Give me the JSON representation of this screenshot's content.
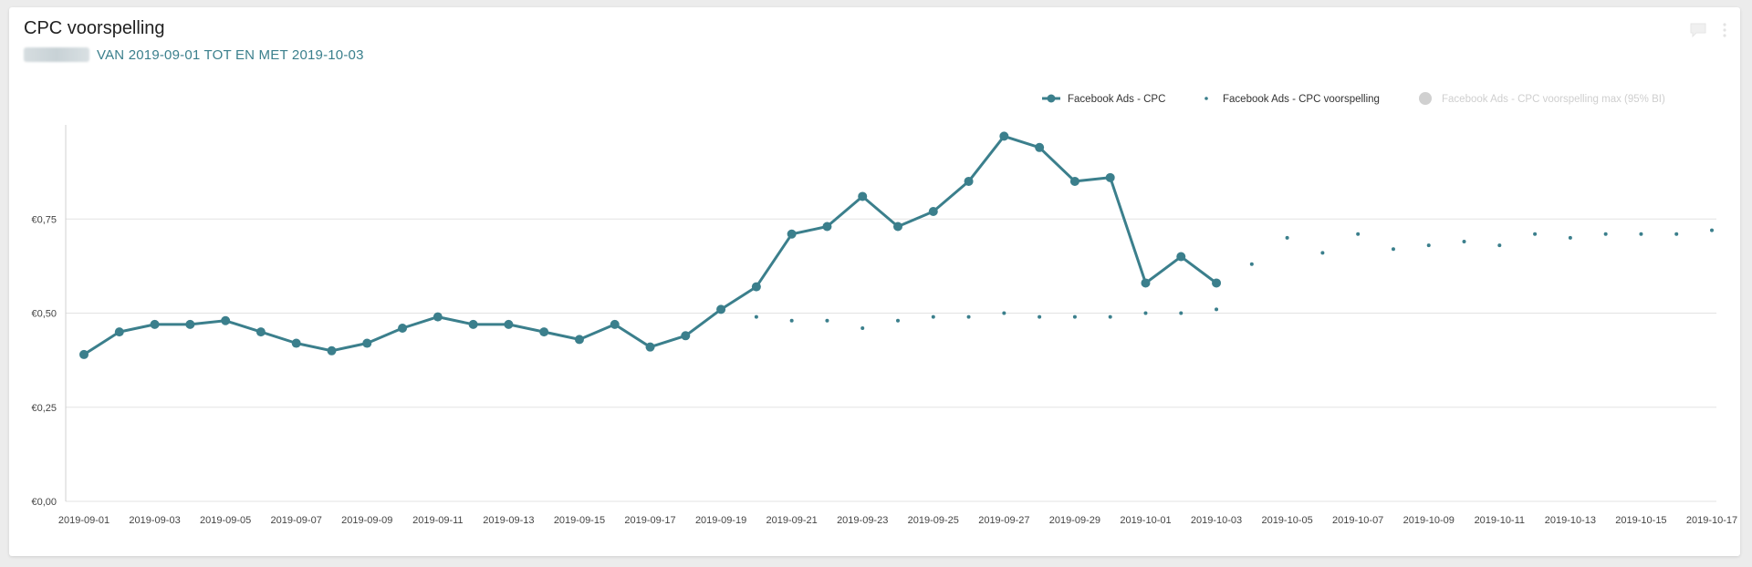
{
  "widget": {
    "title": "CPC voorspelling",
    "subtitle": "VAN 2019-09-01 TOT EN MET 2019-10-03",
    "icons": [
      "comment-icon",
      "more-vertical-icon"
    ]
  },
  "colors": {
    "series": "#3b7f8c",
    "forecast_max": "#cccccc",
    "grid": "#e3e3e3",
    "axis_text": "#444444"
  },
  "chart_data": {
    "type": "line",
    "ylim": [
      0,
      1.0
    ],
    "grid": true,
    "legend_position": "top-right",
    "y_ticks": [
      {
        "value": 0.0,
        "label": "€0,00"
      },
      {
        "value": 0.25,
        "label": "€0,25"
      },
      {
        "value": 0.5,
        "label": "€0,50"
      },
      {
        "value": 0.75,
        "label": "€0,75"
      }
    ],
    "x_ticks": [
      "2019-09-01",
      "2019-09-03",
      "2019-09-05",
      "2019-09-07",
      "2019-09-09",
      "2019-09-11",
      "2019-09-13",
      "2019-09-15",
      "2019-09-17",
      "2019-09-19",
      "2019-09-21",
      "2019-09-23",
      "2019-09-25",
      "2019-09-27",
      "2019-09-29",
      "2019-10-01",
      "2019-10-03",
      "2019-10-05",
      "2019-10-07",
      "2019-10-09",
      "2019-10-11",
      "2019-10-13",
      "2019-10-15",
      "2019-10-17"
    ],
    "x_start": "2019-09-01",
    "x_end": "2019-10-17",
    "series": [
      {
        "name": "Facebook Ads - CPC",
        "style": "line-markers",
        "start": "2019-09-01",
        "values": [
          0.39,
          0.45,
          0.47,
          0.47,
          0.48,
          0.45,
          0.42,
          0.4,
          0.42,
          0.46,
          0.49,
          0.47,
          0.47,
          0.45,
          0.43,
          0.47,
          0.41,
          0.44,
          0.51,
          0.57,
          0.71,
          0.73,
          0.81,
          0.73,
          0.77,
          0.85,
          0.97,
          0.94,
          0.85,
          0.86,
          0.58,
          0.65,
          0.58
        ]
      },
      {
        "name": "Facebook Ads - CPC voorspelling",
        "style": "dots",
        "start": "2019-09-20",
        "values": [
          0.49,
          0.48,
          0.48,
          0.46,
          0.48,
          0.49,
          0.49,
          0.5,
          0.49,
          0.49,
          0.49,
          0.5,
          0.5,
          0.51,
          0.63,
          0.7,
          0.66,
          0.71,
          0.67,
          0.68,
          0.69,
          0.68,
          0.71,
          0.7,
          0.71,
          0.71,
          0.71,
          0.72
        ]
      },
      {
        "name": "Facebook Ads - CPC voorspelling max (95% BI)",
        "style": "hidden",
        "start": "2019-10-04",
        "values": []
      }
    ]
  }
}
